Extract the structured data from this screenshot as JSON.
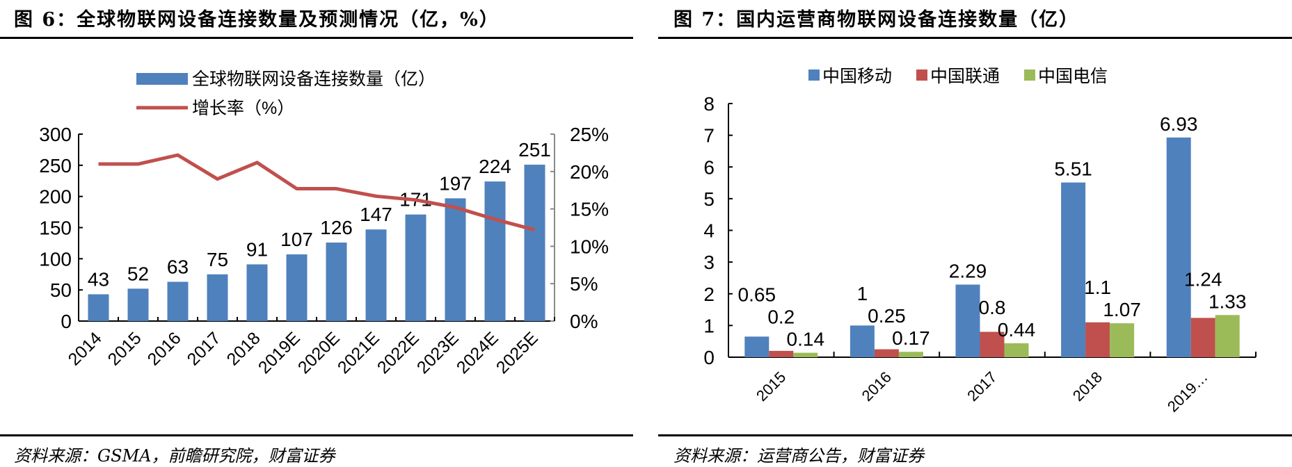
{
  "chart_data": [
    {
      "type": "bar+line",
      "title": "图 6：全球物联网设备连接数量及预测情况（亿，%）",
      "source": "资料来源：GSMA，前瞻研究院，财富证券",
      "categories": [
        "2014",
        "2015",
        "2016",
        "2017",
        "2018",
        "2019E",
        "2020E",
        "2021E",
        "2022E",
        "2023E",
        "2024E",
        "2025E"
      ],
      "series": [
        {
          "name": "全球物联网设备连接数量（亿）",
          "type": "bar",
          "axis": "left",
          "color": "#4f81bd",
          "values": [
            43,
            52,
            63,
            75,
            91,
            107,
            126,
            147,
            171,
            197,
            224,
            251
          ]
        },
        {
          "name": "增长率（%）",
          "type": "line",
          "axis": "right",
          "color": "#c0504d",
          "values": [
            21.0,
            21.0,
            22.2,
            19.0,
            21.2,
            17.7,
            17.7,
            16.7,
            16.2,
            15.2,
            13.6,
            12.2
          ]
        }
      ],
      "ylim": [
        0,
        300
      ],
      "yticks": [
        "0",
        "50",
        "100",
        "150",
        "200",
        "250",
        "300"
      ],
      "y2lim": [
        0,
        25
      ],
      "y2ticks": [
        "0%",
        "5%",
        "10%",
        "15%",
        "20%",
        "25%"
      ],
      "legend": "top"
    },
    {
      "type": "bar",
      "title": "图 7：国内运营商物联网设备连接数量（亿）",
      "source": "资料来源：运营商公告，财富证券",
      "categories": [
        "2015",
        "2016",
        "2017",
        "2018",
        "2019…"
      ],
      "series": [
        {
          "name": "中国移动",
          "color": "#4f81bd",
          "values": [
            0.65,
            1,
            2.29,
            5.51,
            6.93
          ],
          "labels": [
            "0.65",
            "1",
            "2.29",
            "5.51",
            "6.93"
          ]
        },
        {
          "name": "中国联通",
          "color": "#c0504d",
          "values": [
            0.2,
            0.25,
            0.8,
            1.1,
            1.24
          ],
          "labels": [
            "0.2",
            "0.25",
            "0.8",
            "1.1",
            "1.24"
          ]
        },
        {
          "name": "中国电信",
          "color": "#9bbb59",
          "values": [
            0.14,
            0.17,
            0.44,
            1.07,
            1.33
          ],
          "labels": [
            "0.14",
            "0.17",
            "0.44",
            "1.07",
            "1.33"
          ]
        }
      ],
      "ylim": [
        0,
        8
      ],
      "yticks": [
        "0",
        "1",
        "2",
        "3",
        "4",
        "5",
        "6",
        "7",
        "8"
      ],
      "legend": "top"
    }
  ]
}
